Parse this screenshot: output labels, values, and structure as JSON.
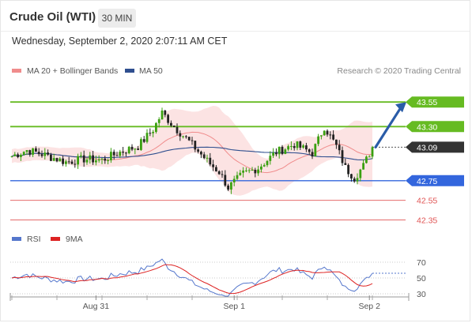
{
  "header": {
    "title": "Crude Oil (WTI)",
    "timeframe": "30 MIN",
    "datetime": "Wednesday, September 2, 2020 2:07:11 AM CET"
  },
  "chart_data": [
    {
      "type": "candlestick",
      "legend": [
        {
          "label": "MA 20 + Bollinger Bands",
          "color": "#f08c8c"
        },
        {
          "label": "MA 50",
          "color": "#2f4f8f"
        }
      ],
      "credit": "Research © 2020 Trading Central",
      "ylim": [
        42.25,
        43.68
      ],
      "levels": [
        {
          "value": 43.55,
          "label": "43.55",
          "kind": "target",
          "color": "#66bb22"
        },
        {
          "value": 43.3,
          "label": "43.30",
          "kind": "target",
          "color": "#66bb22"
        },
        {
          "value": 43.09,
          "label": "43.09",
          "kind": "last",
          "color": "#333333"
        },
        {
          "value": 42.75,
          "label": "42.75",
          "kind": "pivot",
          "color": "#3366dd"
        },
        {
          "value": 42.55,
          "label": "42.55",
          "kind": "support",
          "color": "#e05555"
        },
        {
          "value": 42.35,
          "label": "42.35",
          "kind": "support",
          "color": "#e05555"
        }
      ],
      "xaxis_labels": [
        {
          "label": "Aug 31",
          "index": 28
        },
        {
          "label": "Sep 1",
          "index": 74
        },
        {
          "label": "Sep 2",
          "index": 119
        }
      ],
      "candle_count": 121,
      "anchors": [
        [
          0,
          43.0
        ],
        [
          5,
          43.06
        ],
        [
          10,
          43.02
        ],
        [
          18,
          42.94
        ],
        [
          24,
          42.97
        ],
        [
          30,
          42.96
        ],
        [
          36,
          43.04
        ],
        [
          42,
          43.1
        ],
        [
          47,
          43.27
        ],
        [
          50,
          43.44
        ],
        [
          54,
          43.3
        ],
        [
          58,
          43.18
        ],
        [
          62,
          43.05
        ],
        [
          66,
          42.92
        ],
        [
          69,
          42.84
        ],
        [
          72,
          42.68
        ],
        [
          77,
          42.82
        ],
        [
          82,
          42.88
        ],
        [
          88,
          43.04
        ],
        [
          94,
          43.12
        ],
        [
          100,
          43.03
        ],
        [
          104,
          43.3
        ],
        [
          108,
          43.1
        ],
        [
          111,
          42.88
        ],
        [
          114,
          42.78
        ],
        [
          117,
          42.9
        ],
        [
          120,
          43.09
        ]
      ],
      "forecast": {
        "from": 43.09,
        "to": 43.55
      }
    },
    {
      "type": "line",
      "legend": [
        {
          "label": "RSI",
          "color": "#5577cc"
        },
        {
          "label": "9MA",
          "color": "#dd2222"
        }
      ],
      "ylim": [
        25,
        75
      ],
      "yticks": [
        70,
        50,
        30
      ]
    }
  ]
}
